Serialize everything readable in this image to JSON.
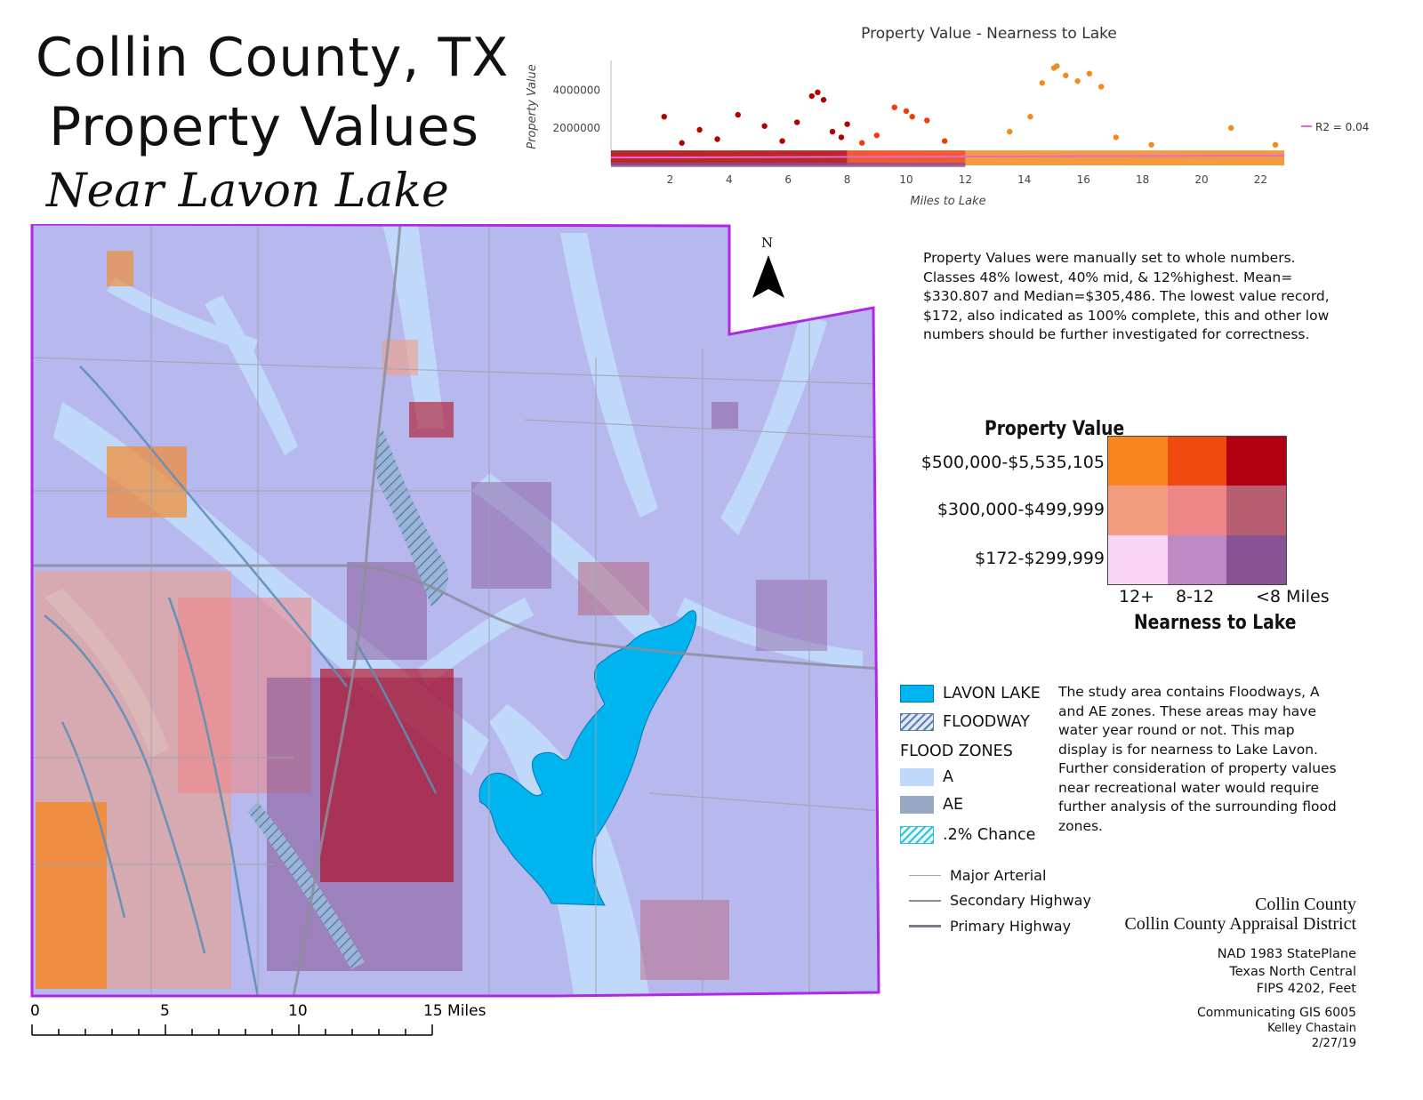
{
  "title": {
    "line1": "Collin County, TX",
    "line2": "Property Values",
    "line3": "Near Lavon Lake"
  },
  "chart_data": {
    "type": "scatter",
    "title": "Property Value - Nearness to Lake",
    "xlabel": "Miles to Lake",
    "ylabel": "Property Value",
    "xlim": [
      0,
      22.8
    ],
    "ylim": [
      0,
      5600000
    ],
    "x_ticks": [
      "2",
      "4",
      "6",
      "8",
      "10",
      "12",
      "14",
      "16",
      "18",
      "20",
      "22"
    ],
    "y_ticks": [
      "2000000",
      "4000000"
    ],
    "trendline_label": "R2 = 0.04",
    "series": [
      {
        "color": "#b00000",
        "x_range": [
          0,
          8
        ],
        "points": [
          [
            1.8,
            2600000
          ],
          [
            3.0,
            1900000
          ],
          [
            4.3,
            2700000
          ],
          [
            5.2,
            2100000
          ],
          [
            6.3,
            2300000
          ],
          [
            6.8,
            3700000
          ],
          [
            7.0,
            3900000
          ],
          [
            7.2,
            3500000
          ],
          [
            7.5,
            1800000
          ],
          [
            8.0,
            2200000
          ],
          [
            2.4,
            1200000
          ],
          [
            3.6,
            1400000
          ],
          [
            5.8,
            1300000
          ],
          [
            7.8,
            1500000
          ]
        ]
      },
      {
        "color": "#f03c0a",
        "x_range": [
          8,
          12
        ],
        "points": [
          [
            9.6,
            3100000
          ],
          [
            10.0,
            2900000
          ],
          [
            10.2,
            2600000
          ],
          [
            10.7,
            2400000
          ],
          [
            9.0,
            1600000
          ],
          [
            11.3,
            1300000
          ],
          [
            8.5,
            1200000
          ]
        ]
      },
      {
        "color": "#f28a1e",
        "x_range": [
          12,
          22.8
        ],
        "points": [
          [
            14.6,
            4400000
          ],
          [
            15.0,
            5200000
          ],
          [
            15.1,
            5300000
          ],
          [
            15.4,
            4800000
          ],
          [
            15.8,
            4500000
          ],
          [
            16.2,
            4900000
          ],
          [
            16.6,
            4200000
          ],
          [
            14.2,
            2600000
          ],
          [
            13.5,
            1800000
          ],
          [
            17.1,
            1500000
          ],
          [
            18.3,
            1100000
          ],
          [
            21.0,
            2000000
          ],
          [
            22.5,
            1100000
          ]
        ]
      }
    ]
  },
  "notes": "Property Values were manually set to whole numbers. Classes 48% lowest, 40%  mid, & 12%highest.  Mean= $330.807 and Median=$305,486.  The lowest value record, $172, also indicated as 100% complete, this and other low numbers should be further investigated for correctness.",
  "bivariate_legend": {
    "title": "Property Value",
    "rows": [
      "$500,000-$5,535,105",
      "$300,000-$499,999",
      "$172-$299,999"
    ],
    "columns": [
      "12+",
      "8-12",
      "<8 Miles"
    ],
    "axis_title": "Nearness to Lake",
    "colors": [
      [
        "#f7861e",
        "#ef4a10",
        "#b10012"
      ],
      [
        "#f39c80",
        "#ee8888",
        "#b85e72"
      ],
      [
        "#fad6f6",
        "#bf89c6",
        "#875394"
      ]
    ]
  },
  "layer_legend": {
    "lake": "LAVON LAKE",
    "floodway": "FLOODWAY",
    "flood_zones": "FLOOD ZONES",
    "zone_a": "A",
    "zone_ae": "AE",
    "zone_02": ".2% Chance",
    "roads": [
      "Major Arterial",
      "Secondary Highway",
      "Primary Highway"
    ],
    "colors": {
      "lake": "#00b4f0",
      "zone_a": "#c0d8fa",
      "zone_ae": "#98a8c4",
      "base": "#b7b8ee",
      "county_outline": "#b027e6"
    }
  },
  "study_notes": "The study area contains Floodways, A and AE zones.  These areas may have water year round or not.  This map display is for nearness to Lake Lavon. Further consideration of property values near recreational water would require further analysis of the surrounding flood zones.",
  "north": "N",
  "credits": {
    "org1": "Collin County",
    "org2": "Collin County Appraisal District",
    "proj1": "NAD 1983 StatePlane",
    "proj2": "Texas North Central",
    "proj3": "FIPS 4202, Feet",
    "course": "Communicating GIS 6005",
    "author": "Kelley Chastain",
    "date": "2/27/19"
  },
  "scale": {
    "labels": [
      "0",
      "5",
      "10",
      "15 Miles"
    ]
  }
}
